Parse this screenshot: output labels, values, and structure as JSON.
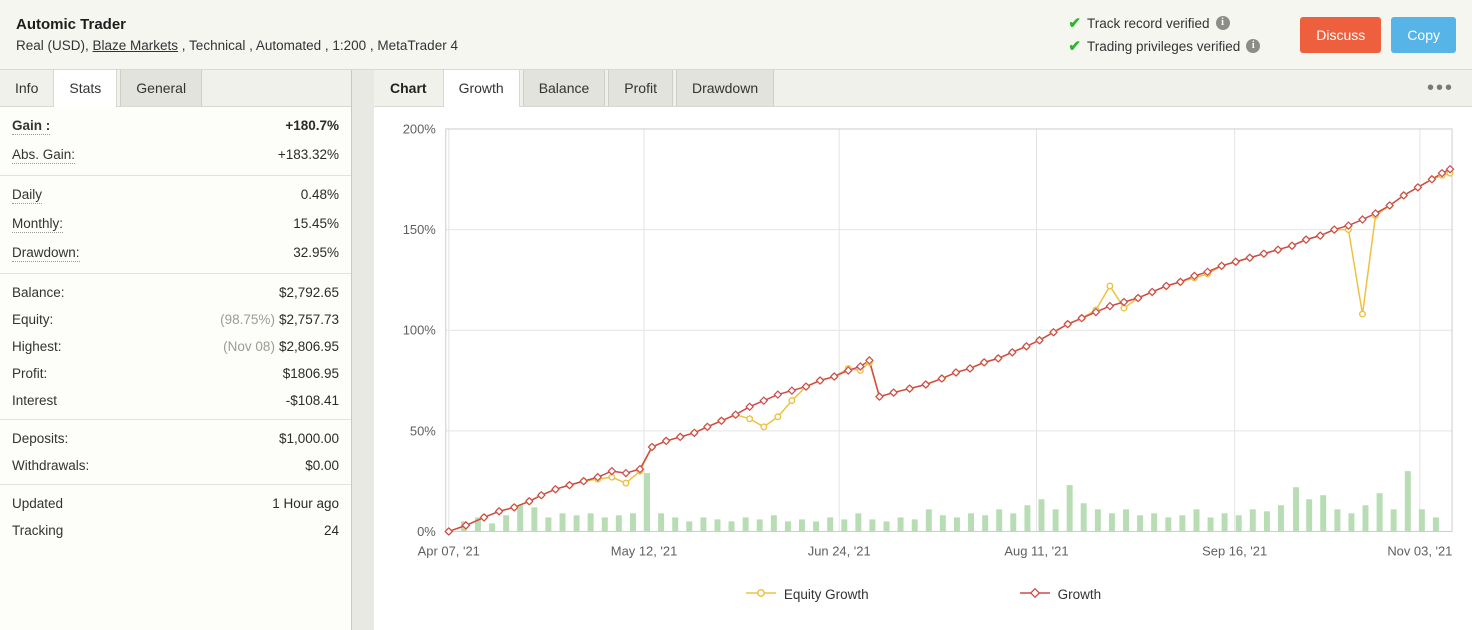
{
  "icons": {
    "check": "✔",
    "info": "i",
    "dots": "•••"
  },
  "header": {
    "title": "Automic Trader",
    "subtitle_pre": "Real (USD), ",
    "subtitle_link": "Blaze Markets",
    "subtitle_post": " , Technical , Automated , 1:200 , MetaTrader 4",
    "verified": [
      {
        "label": "Track record verified"
      },
      {
        "label": "Trading privileges verified"
      }
    ],
    "buttons": {
      "discuss": "Discuss",
      "copy": "Copy"
    }
  },
  "sidebar": {
    "tabs": [
      {
        "label": "Info"
      },
      {
        "label": "Stats"
      },
      {
        "label": "General"
      }
    ],
    "stats": {
      "gain": {
        "label": "Gain :",
        "value": "+180.7%"
      },
      "abs_gain": {
        "label": "Abs. Gain:",
        "value": "+183.32%"
      },
      "daily": {
        "label": "Daily",
        "value": "0.48%"
      },
      "monthly": {
        "label": "Monthly:",
        "value": "15.45%"
      },
      "drawdown": {
        "label": "Drawdown:",
        "value": "32.95%"
      },
      "balance": {
        "label": "Balance:",
        "value": "$2,792.65"
      },
      "equity": {
        "label": "Equity:",
        "prefix": "(98.75%)",
        "value": "$2,757.73"
      },
      "highest": {
        "label": "Highest:",
        "prefix": "(Nov 08)",
        "value": "$2,806.95"
      },
      "profit": {
        "label": "Profit:",
        "value": "$1806.95"
      },
      "interest": {
        "label": "Interest",
        "value": "-$108.41"
      },
      "deposits": {
        "label": "Deposits:",
        "value": "$1,000.00"
      },
      "withdrawals": {
        "label": "Withdrawals:",
        "value": "$0.00"
      },
      "updated": {
        "label": "Updated",
        "value": "1 Hour ago"
      },
      "tracking": {
        "label": "Tracking",
        "value": "24"
      }
    }
  },
  "chart": {
    "section_label": "Chart",
    "tabs": {
      "growth": "Growth",
      "balance": "Balance",
      "profit": "Profit",
      "drawdown": "Drawdown"
    }
  },
  "chart_data": {
    "type": "line",
    "title": "Growth",
    "ylim": [
      0,
      200
    ],
    "grid": true,
    "legend_position": "bottom-center",
    "y_ticks": [
      {
        "value": 0,
        "label": "0%"
      },
      {
        "value": 50,
        "label": "50%"
      },
      {
        "value": 100,
        "label": "100%"
      },
      {
        "value": 150,
        "label": "150%"
      },
      {
        "value": 200,
        "label": "200%"
      }
    ],
    "x_ticks": [
      {
        "pos": 0.003,
        "label": "Apr 07, '21"
      },
      {
        "pos": 0.197,
        "label": "May 12, '21"
      },
      {
        "pos": 0.391,
        "label": "Jun 24, '21"
      },
      {
        "pos": 0.587,
        "label": "Aug 11, '21"
      },
      {
        "pos": 0.784,
        "label": "Sep 16, '21"
      },
      {
        "pos": 0.968,
        "label": "Nov 03, '21"
      }
    ],
    "series": [
      {
        "name": "Equity Growth",
        "color": "#EDC240",
        "marker": "circle",
        "points": [
          [
            0.003,
            0
          ],
          [
            0.02,
            3
          ],
          [
            0.038,
            7
          ],
          [
            0.053,
            10
          ],
          [
            0.068,
            12
          ],
          [
            0.083,
            15
          ],
          [
            0.095,
            18
          ],
          [
            0.109,
            21
          ],
          [
            0.123,
            23
          ],
          [
            0.137,
            25
          ],
          [
            0.151,
            26
          ],
          [
            0.165,
            27
          ],
          [
            0.179,
            24
          ],
          [
            0.193,
            30
          ],
          [
            0.205,
            42
          ],
          [
            0.219,
            45
          ],
          [
            0.233,
            47
          ],
          [
            0.247,
            49
          ],
          [
            0.26,
            52
          ],
          [
            0.274,
            55
          ],
          [
            0.288,
            58
          ],
          [
            0.302,
            56
          ],
          [
            0.316,
            52
          ],
          [
            0.33,
            57
          ],
          [
            0.344,
            65
          ],
          [
            0.358,
            72
          ],
          [
            0.372,
            75
          ],
          [
            0.386,
            77
          ],
          [
            0.4,
            81
          ],
          [
            0.412,
            80
          ],
          [
            0.421,
            84
          ],
          [
            0.431,
            67
          ],
          [
            0.445,
            69
          ],
          [
            0.461,
            71
          ],
          [
            0.477,
            73
          ],
          [
            0.493,
            76
          ],
          [
            0.507,
            79
          ],
          [
            0.521,
            81
          ],
          [
            0.535,
            84
          ],
          [
            0.549,
            86
          ],
          [
            0.563,
            89
          ],
          [
            0.577,
            92
          ],
          [
            0.59,
            95
          ],
          [
            0.604,
            99
          ],
          [
            0.618,
            103
          ],
          [
            0.632,
            106
          ],
          [
            0.646,
            110
          ],
          [
            0.66,
            122
          ],
          [
            0.674,
            111
          ],
          [
            0.688,
            116
          ],
          [
            0.702,
            119
          ],
          [
            0.716,
            122
          ],
          [
            0.73,
            124
          ],
          [
            0.744,
            126
          ],
          [
            0.757,
            128
          ],
          [
            0.771,
            132
          ],
          [
            0.785,
            134
          ],
          [
            0.799,
            136
          ],
          [
            0.813,
            138
          ],
          [
            0.827,
            140
          ],
          [
            0.841,
            142
          ],
          [
            0.855,
            145
          ],
          [
            0.869,
            147
          ],
          [
            0.883,
            150
          ],
          [
            0.897,
            150
          ],
          [
            0.911,
            108
          ],
          [
            0.924,
            157
          ],
          [
            0.938,
            162
          ],
          [
            0.952,
            167
          ],
          [
            0.966,
            171
          ],
          [
            0.98,
            175
          ],
          [
            0.99,
            177
          ],
          [
            0.998,
            178
          ]
        ]
      },
      {
        "name": "Growth",
        "color": "#CB4B4B",
        "marker": "diamond",
        "points": [
          [
            0.003,
            0
          ],
          [
            0.02,
            3
          ],
          [
            0.038,
            7
          ],
          [
            0.053,
            10
          ],
          [
            0.068,
            12
          ],
          [
            0.083,
            15
          ],
          [
            0.095,
            18
          ],
          [
            0.109,
            21
          ],
          [
            0.123,
            23
          ],
          [
            0.137,
            25
          ],
          [
            0.151,
            27
          ],
          [
            0.165,
            30
          ],
          [
            0.179,
            29
          ],
          [
            0.193,
            31
          ],
          [
            0.205,
            42
          ],
          [
            0.219,
            45
          ],
          [
            0.233,
            47
          ],
          [
            0.247,
            49
          ],
          [
            0.26,
            52
          ],
          [
            0.274,
            55
          ],
          [
            0.288,
            58
          ],
          [
            0.302,
            62
          ],
          [
            0.316,
            65
          ],
          [
            0.33,
            68
          ],
          [
            0.344,
            70
          ],
          [
            0.358,
            72
          ],
          [
            0.372,
            75
          ],
          [
            0.386,
            77
          ],
          [
            0.4,
            80
          ],
          [
            0.412,
            82
          ],
          [
            0.421,
            85
          ],
          [
            0.431,
            67
          ],
          [
            0.445,
            69
          ],
          [
            0.461,
            71
          ],
          [
            0.477,
            73
          ],
          [
            0.493,
            76
          ],
          [
            0.507,
            79
          ],
          [
            0.521,
            81
          ],
          [
            0.535,
            84
          ],
          [
            0.549,
            86
          ],
          [
            0.563,
            89
          ],
          [
            0.577,
            92
          ],
          [
            0.59,
            95
          ],
          [
            0.604,
            99
          ],
          [
            0.618,
            103
          ],
          [
            0.632,
            106
          ],
          [
            0.646,
            109
          ],
          [
            0.66,
            112
          ],
          [
            0.674,
            114
          ],
          [
            0.688,
            116
          ],
          [
            0.702,
            119
          ],
          [
            0.716,
            122
          ],
          [
            0.73,
            124
          ],
          [
            0.744,
            127
          ],
          [
            0.757,
            129
          ],
          [
            0.771,
            132
          ],
          [
            0.785,
            134
          ],
          [
            0.799,
            136
          ],
          [
            0.813,
            138
          ],
          [
            0.827,
            140
          ],
          [
            0.841,
            142
          ],
          [
            0.855,
            145
          ],
          [
            0.869,
            147
          ],
          [
            0.883,
            150
          ],
          [
            0.897,
            152
          ],
          [
            0.911,
            155
          ],
          [
            0.924,
            158
          ],
          [
            0.938,
            162
          ],
          [
            0.952,
            167
          ],
          [
            0.966,
            171
          ],
          [
            0.98,
            175
          ],
          [
            0.99,
            178
          ],
          [
            0.998,
            180
          ]
        ]
      }
    ],
    "bars": {
      "name": "Trade volume bars",
      "color": "#b8ddb4",
      "points": [
        [
          0.018,
          5
        ],
        [
          0.032,
          7
        ],
        [
          0.046,
          4
        ],
        [
          0.06,
          8
        ],
        [
          0.074,
          13
        ],
        [
          0.088,
          12
        ],
        [
          0.102,
          7
        ],
        [
          0.116,
          9
        ],
        [
          0.13,
          8
        ],
        [
          0.144,
          9
        ],
        [
          0.158,
          7
        ],
        [
          0.172,
          8
        ],
        [
          0.186,
          9
        ],
        [
          0.2,
          29
        ],
        [
          0.214,
          9
        ],
        [
          0.228,
          7
        ],
        [
          0.242,
          5
        ],
        [
          0.256,
          7
        ],
        [
          0.27,
          6
        ],
        [
          0.284,
          5
        ],
        [
          0.298,
          7
        ],
        [
          0.312,
          6
        ],
        [
          0.326,
          8
        ],
        [
          0.34,
          5
        ],
        [
          0.354,
          6
        ],
        [
          0.368,
          5
        ],
        [
          0.382,
          7
        ],
        [
          0.396,
          6
        ],
        [
          0.41,
          9
        ],
        [
          0.424,
          6
        ],
        [
          0.438,
          5
        ],
        [
          0.452,
          7
        ],
        [
          0.466,
          6
        ],
        [
          0.48,
          11
        ],
        [
          0.494,
          8
        ],
        [
          0.508,
          7
        ],
        [
          0.522,
          9
        ],
        [
          0.536,
          8
        ],
        [
          0.55,
          11
        ],
        [
          0.564,
          9
        ],
        [
          0.578,
          13
        ],
        [
          0.592,
          16
        ],
        [
          0.606,
          11
        ],
        [
          0.62,
          23
        ],
        [
          0.634,
          14
        ],
        [
          0.648,
          11
        ],
        [
          0.662,
          9
        ],
        [
          0.676,
          11
        ],
        [
          0.69,
          8
        ],
        [
          0.704,
          9
        ],
        [
          0.718,
          7
        ],
        [
          0.732,
          8
        ],
        [
          0.746,
          11
        ],
        [
          0.76,
          7
        ],
        [
          0.774,
          9
        ],
        [
          0.788,
          8
        ],
        [
          0.802,
          11
        ],
        [
          0.816,
          10
        ],
        [
          0.83,
          13
        ],
        [
          0.845,
          22
        ],
        [
          0.858,
          16
        ],
        [
          0.872,
          18
        ],
        [
          0.886,
          11
        ],
        [
          0.9,
          9
        ],
        [
          0.914,
          13
        ],
        [
          0.928,
          19
        ],
        [
          0.942,
          11
        ],
        [
          0.956,
          30
        ],
        [
          0.97,
          11
        ],
        [
          0.984,
          7
        ]
      ]
    }
  }
}
